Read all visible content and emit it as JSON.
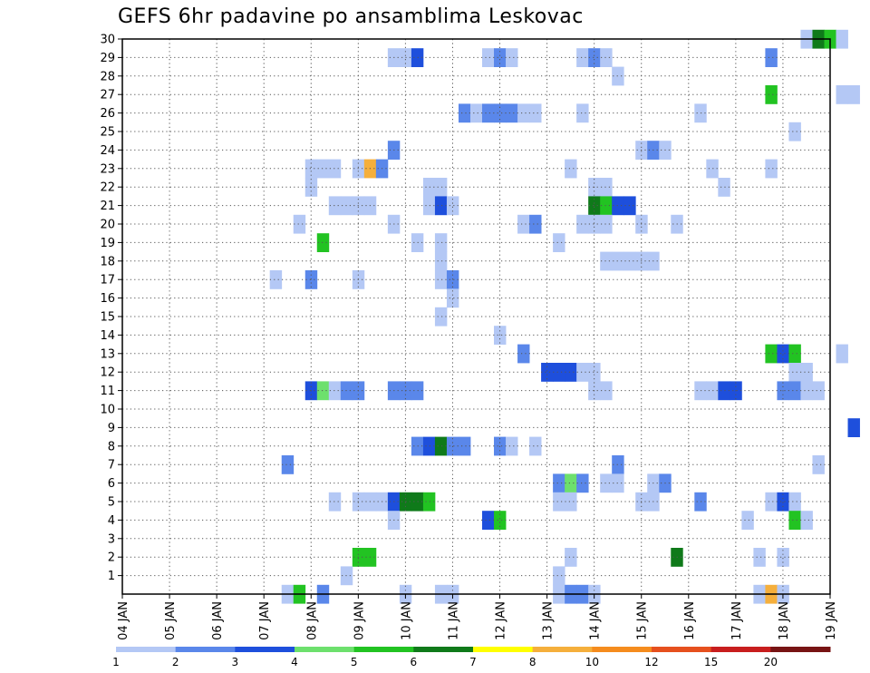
{
  "chart_data": {
    "type": "heatmap",
    "title": "GEFS 6hr padavine po ansamblima Leskovac",
    "xlabel": "",
    "ylabel": "",
    "x_ticks": [
      "04 JAN",
      "05 JAN",
      "06 JAN",
      "07 JAN",
      "08 JAN",
      "09 JAN",
      "10 JAN",
      "11 JAN",
      "12 JAN",
      "13 JAN",
      "14 JAN",
      "15 JAN",
      "16 JAN",
      "17 JAN",
      "18 JAN",
      "19 JAN"
    ],
    "y_ticks": [
      1,
      2,
      3,
      4,
      5,
      6,
      7,
      8,
      9,
      10,
      11,
      12,
      13,
      14,
      15,
      16,
      17,
      18,
      19,
      20,
      21,
      22,
      23,
      24,
      25,
      26,
      27,
      28,
      29,
      30
    ],
    "x_range_days": [
      0,
      15
    ],
    "y_range": [
      0,
      30
    ],
    "grid": true,
    "legend": {
      "placement": "bottom",
      "labels": [
        "1",
        "2",
        "3",
        "4",
        "5",
        "6",
        "7",
        "8",
        "10",
        "12",
        "15",
        "20"
      ],
      "colors": [
        "#b4c8f5",
        "#5a87ea",
        "#1e4fdc",
        "#6de06d",
        "#22c322",
        "#0f7a1a",
        "#ffff00",
        "#f5af3c",
        "#f58c1e",
        "#e6501e",
        "#c81e1e",
        "#781414"
      ]
    },
    "cells": [
      [
        30,
        14.5,
        1
      ],
      [
        30,
        14.75,
        6
      ],
      [
        30,
        15,
        5
      ],
      [
        30,
        15.25,
        1
      ],
      [
        29,
        5.75,
        1
      ],
      [
        29,
        6,
        1
      ],
      [
        29,
        6.25,
        3
      ],
      [
        29,
        7.75,
        1
      ],
      [
        29,
        8,
        2
      ],
      [
        29,
        8.25,
        1
      ],
      [
        29,
        9.75,
        1
      ],
      [
        29,
        10,
        2
      ],
      [
        29,
        10.25,
        1
      ],
      [
        29,
        13.75,
        2
      ],
      [
        28,
        10.5,
        1
      ],
      [
        27,
        13.75,
        5
      ],
      [
        27,
        15.25,
        1
      ],
      [
        27,
        15.5,
        1
      ],
      [
        26,
        7.25,
        2
      ],
      [
        26,
        7.5,
        1
      ],
      [
        26,
        7.75,
        2
      ],
      [
        26,
        8,
        2
      ],
      [
        26,
        8.25,
        2
      ],
      [
        26,
        8.5,
        1
      ],
      [
        26,
        8.75,
        1
      ],
      [
        26,
        9.75,
        1
      ],
      [
        26,
        12.25,
        1
      ],
      [
        25,
        14.25,
        1
      ],
      [
        24,
        5.75,
        2
      ],
      [
        24,
        11,
        1
      ],
      [
        24,
        11.25,
        2
      ],
      [
        24,
        11.5,
        1
      ],
      [
        23,
        4,
        1
      ],
      [
        23,
        4.25,
        1
      ],
      [
        23,
        4.5,
        1
      ],
      [
        23,
        5,
        1
      ],
      [
        23,
        5.25,
        8
      ],
      [
        23,
        5.5,
        2
      ],
      [
        23,
        9.5,
        1
      ],
      [
        23,
        12.5,
        1
      ],
      [
        23,
        13.75,
        1
      ],
      [
        22,
        4,
        1
      ],
      [
        22,
        6.5,
        1
      ],
      [
        22,
        6.75,
        1
      ],
      [
        22,
        10,
        1
      ],
      [
        22,
        10.25,
        1
      ],
      [
        22,
        12.75,
        1
      ],
      [
        21,
        4.5,
        1
      ],
      [
        21,
        4.75,
        1
      ],
      [
        21,
        5,
        1
      ],
      [
        21,
        5.25,
        1
      ],
      [
        21,
        6.5,
        1
      ],
      [
        21,
        6.75,
        3
      ],
      [
        21,
        7,
        1
      ],
      [
        21,
        10,
        6
      ],
      [
        21,
        10.25,
        5
      ],
      [
        21,
        10.5,
        3
      ],
      [
        21,
        10.75,
        3
      ],
      [
        20,
        3.75,
        1
      ],
      [
        20,
        5.75,
        1
      ],
      [
        20,
        8.5,
        1
      ],
      [
        20,
        8.75,
        2
      ],
      [
        20,
        9.75,
        1
      ],
      [
        20,
        10,
        1
      ],
      [
        20,
        10.25,
        1
      ],
      [
        20,
        11,
        1
      ],
      [
        20,
        11.75,
        1
      ],
      [
        19,
        4.25,
        5
      ],
      [
        19,
        6.25,
        1
      ],
      [
        19,
        6.75,
        1
      ],
      [
        19,
        9.25,
        1
      ],
      [
        18,
        6.75,
        1
      ],
      [
        18,
        10.25,
        1
      ],
      [
        18,
        10.5,
        1
      ],
      [
        18,
        10.75,
        1
      ],
      [
        18,
        11,
        1
      ],
      [
        18,
        11.25,
        1
      ],
      [
        17,
        3.25,
        1
      ],
      [
        17,
        4,
        2
      ],
      [
        17,
        5,
        1
      ],
      [
        17,
        6.75,
        1
      ],
      [
        17,
        7,
        2
      ],
      [
        16,
        7,
        1
      ],
      [
        15,
        6.75,
        1
      ],
      [
        14,
        8,
        1
      ],
      [
        13,
        8.5,
        2
      ],
      [
        13,
        13.75,
        5
      ],
      [
        13,
        14,
        3
      ],
      [
        13,
        14.25,
        5
      ],
      [
        13,
        15.25,
        1
      ],
      [
        12,
        9,
        3
      ],
      [
        12,
        9.25,
        3
      ],
      [
        12,
        9.5,
        3
      ],
      [
        12,
        9.75,
        1
      ],
      [
        12,
        10,
        1
      ],
      [
        12,
        14.25,
        1
      ],
      [
        12,
        14.5,
        1
      ],
      [
        11,
        4,
        3
      ],
      [
        11,
        4.25,
        4
      ],
      [
        11,
        4.5,
        1
      ],
      [
        11,
        4.75,
        2
      ],
      [
        11,
        5,
        2
      ],
      [
        11,
        5.75,
        2
      ],
      [
        11,
        6,
        2
      ],
      [
        11,
        6.25,
        2
      ],
      [
        11,
        10,
        1
      ],
      [
        11,
        10.25,
        1
      ],
      [
        11,
        12.25,
        1
      ],
      [
        11,
        12.5,
        1
      ],
      [
        11,
        12.75,
        3
      ],
      [
        11,
        13,
        3
      ],
      [
        11,
        14,
        2
      ],
      [
        11,
        14.25,
        2
      ],
      [
        11,
        14.5,
        1
      ],
      [
        11,
        14.75,
        1
      ],
      [
        9,
        15.5,
        3
      ],
      [
        8,
        6.25,
        2
      ],
      [
        8,
        6.5,
        3
      ],
      [
        8,
        6.75,
        6
      ],
      [
        8,
        7,
        2
      ],
      [
        8,
        7.25,
        2
      ],
      [
        8,
        8,
        2
      ],
      [
        8,
        8.25,
        1
      ],
      [
        8,
        8.75,
        1
      ],
      [
        7,
        3.5,
        2
      ],
      [
        7,
        10.5,
        2
      ],
      [
        7,
        14.75,
        1
      ],
      [
        6,
        9.25,
        2
      ],
      [
        6,
        9.5,
        4
      ],
      [
        6,
        9.75,
        2
      ],
      [
        6,
        10.25,
        1
      ],
      [
        6,
        10.5,
        1
      ],
      [
        6,
        11.25,
        1
      ],
      [
        6,
        11.5,
        2
      ],
      [
        5,
        4.5,
        1
      ],
      [
        5,
        5,
        1
      ],
      [
        5,
        5.25,
        1
      ],
      [
        5,
        5.5,
        1
      ],
      [
        5,
        5.75,
        3
      ],
      [
        5,
        6,
        6
      ],
      [
        5,
        6.25,
        6
      ],
      [
        5,
        6.5,
        5
      ],
      [
        5,
        9.25,
        1
      ],
      [
        5,
        9.5,
        1
      ],
      [
        5,
        11,
        1
      ],
      [
        5,
        11.25,
        1
      ],
      [
        5,
        12.25,
        2
      ],
      [
        5,
        13.75,
        1
      ],
      [
        5,
        14,
        3
      ],
      [
        5,
        14.25,
        1
      ],
      [
        4,
        5.75,
        1
      ],
      [
        4,
        7.75,
        3
      ],
      [
        4,
        8,
        5
      ],
      [
        4,
        13.25,
        1
      ],
      [
        4,
        14.25,
        5
      ],
      [
        4,
        14.5,
        1
      ],
      [
        2,
        5,
        5
      ],
      [
        2,
        5.25,
        5
      ],
      [
        2,
        9.5,
        1
      ],
      [
        2,
        11.75,
        6
      ],
      [
        2,
        13.5,
        1
      ],
      [
        2,
        14,
        1
      ],
      [
        1,
        4.75,
        1
      ],
      [
        1,
        9.25,
        1
      ],
      [
        0,
        3.5,
        1
      ],
      [
        0,
        3.75,
        5
      ],
      [
        0,
        4.25,
        2
      ],
      [
        0,
        6,
        1
      ],
      [
        0,
        6.75,
        1
      ],
      [
        0,
        7,
        1
      ],
      [
        0,
        9.25,
        1
      ],
      [
        0,
        9.5,
        2
      ],
      [
        0,
        9.75,
        2
      ],
      [
        0,
        10,
        1
      ],
      [
        0,
        13.5,
        1
      ],
      [
        0,
        13.75,
        8
      ],
      [
        0,
        14,
        1
      ]
    ]
  }
}
